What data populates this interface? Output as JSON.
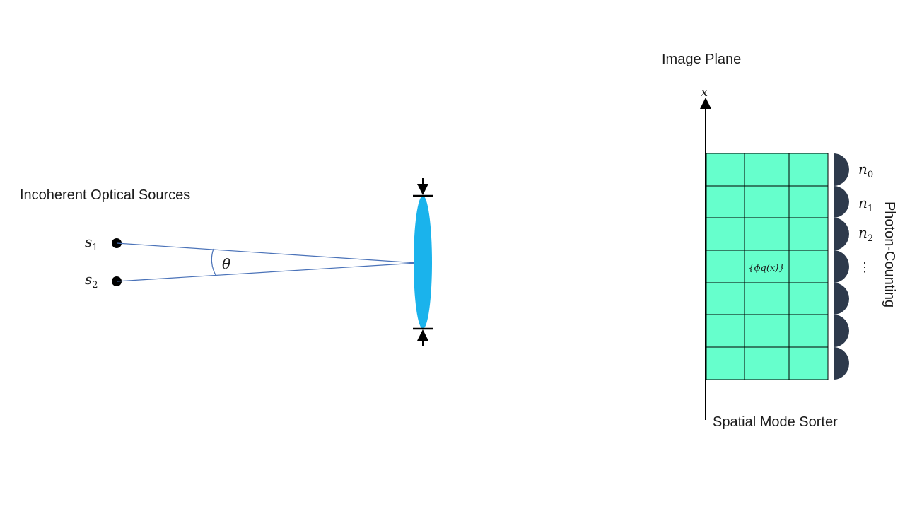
{
  "labels": {
    "sources_title": "Incoherent Optical Sources",
    "image_plane": "Image Plane",
    "mode_sorter": "Spatial Mode Sorter",
    "photon_counting": "Photon-Counting",
    "axis_x": "x",
    "angle": "θ",
    "modes": "{ϕq(x)}"
  },
  "sources": [
    {
      "symbol": "s",
      "subscript": "1"
    },
    {
      "symbol": "s",
      "subscript": "2"
    }
  ],
  "detectors": [
    {
      "symbol": "n",
      "subscript": "0"
    },
    {
      "symbol": "n",
      "subscript": "1"
    },
    {
      "symbol": "n",
      "subscript": "2"
    },
    {
      "symbol": "⋮",
      "subscript": ""
    },
    {
      "symbol": "",
      "subscript": ""
    },
    {
      "symbol": "",
      "subscript": ""
    },
    {
      "symbol": "",
      "subscript": ""
    }
  ],
  "colors": {
    "lens": "#1ab3ec",
    "rays": "#4a72b8",
    "sorter_fill": "#66ffcc",
    "detector": "#2e3a4c",
    "ink": "#000000"
  }
}
